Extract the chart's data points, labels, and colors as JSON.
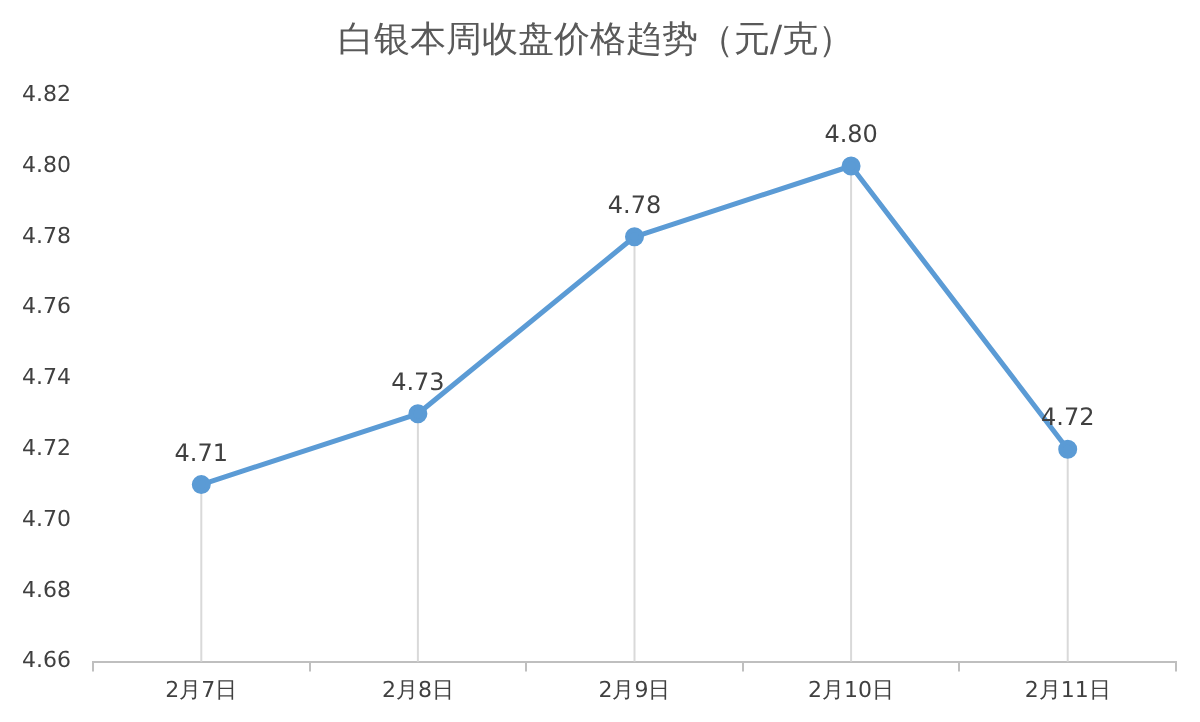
{
  "chart_data": {
    "type": "line",
    "title": "白银本周收盘价格趋势（元/克）",
    "categories": [
      "2月7日",
      "2月8日",
      "2月9日",
      "2月10日",
      "2月11日"
    ],
    "series": [
      {
        "color": "#5b9bd5",
        "values": [
          4.71,
          4.73,
          4.78,
          4.8,
          4.72
        ],
        "value_labels": [
          "4.71",
          "4.73",
          "4.78",
          "4.80",
          "4.72"
        ]
      }
    ],
    "ylim": [
      4.66,
      4.82
    ],
    "yticks": [
      {
        "value": 4.66,
        "label": "4.66"
      },
      {
        "value": 4.68,
        "label": "4.68"
      },
      {
        "value": 4.7,
        "label": "4.70"
      },
      {
        "value": 4.72,
        "label": "4.72"
      },
      {
        "value": 4.74,
        "label": "4.74"
      },
      {
        "value": 4.76,
        "label": "4.76"
      },
      {
        "value": 4.78,
        "label": "4.78"
      },
      {
        "value": 4.8,
        "label": "4.80"
      },
      {
        "value": 4.82,
        "label": "4.82"
      }
    ],
    "marker": "circle",
    "legend": false,
    "grid": "x"
  }
}
